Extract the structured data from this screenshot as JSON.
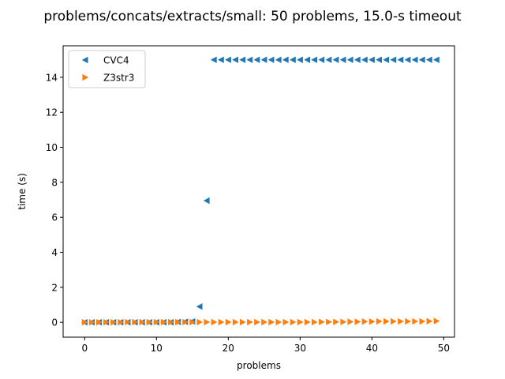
{
  "chart_data": {
    "type": "scatter",
    "title": "problems/concats/extracts/small: 50 problems, 15.0-s timeout",
    "xlabel": "problems",
    "ylabel": "time (s)",
    "xlim": [
      -3,
      51.5
    ],
    "ylim": [
      -0.85,
      15.8
    ],
    "xticks": [
      0,
      10,
      20,
      30,
      40,
      50
    ],
    "yticks": [
      0,
      2,
      4,
      6,
      8,
      10,
      12,
      14
    ],
    "grid": false,
    "legend_position": "top-left",
    "series": [
      {
        "name": "CVC4",
        "marker": "triangle-left",
        "color": "#1f77b4",
        "x": [
          0,
          1,
          2,
          3,
          4,
          5,
          6,
          7,
          8,
          9,
          10,
          11,
          12,
          13,
          14,
          15,
          16,
          17,
          18,
          19,
          20,
          21,
          22,
          23,
          24,
          25,
          26,
          27,
          28,
          29,
          30,
          31,
          32,
          33,
          34,
          35,
          36,
          37,
          38,
          39,
          40,
          41,
          42,
          43,
          44,
          45,
          46,
          47,
          48,
          49
        ],
        "y": [
          0,
          0,
          0,
          0,
          0,
          0,
          0,
          0,
          0,
          0,
          0,
          0,
          0,
          0.02,
          0.03,
          0.05,
          0.9,
          6.95,
          15,
          15,
          15,
          15,
          15,
          15,
          15,
          15,
          15,
          15,
          15,
          15,
          15,
          15,
          15,
          15,
          15,
          15,
          15,
          15,
          15,
          15,
          15,
          15,
          15,
          15,
          15,
          15,
          15,
          15,
          15,
          15
        ]
      },
      {
        "name": "Z3str3",
        "marker": "triangle-right",
        "color": "#ff7f0e",
        "x": [
          0,
          1,
          2,
          3,
          4,
          5,
          6,
          7,
          8,
          9,
          10,
          11,
          12,
          13,
          14,
          15,
          16,
          17,
          18,
          19,
          20,
          21,
          22,
          23,
          24,
          25,
          26,
          27,
          28,
          29,
          30,
          31,
          32,
          33,
          34,
          35,
          36,
          37,
          38,
          39,
          40,
          41,
          42,
          43,
          44,
          45,
          46,
          47,
          48,
          49
        ],
        "y": [
          0,
          0,
          0,
          0,
          0,
          0,
          0.01,
          0.01,
          0.01,
          0.01,
          0.01,
          0.01,
          0.01,
          0.01,
          0.01,
          0.01,
          0.01,
          0.01,
          0.01,
          0.01,
          0.01,
          0.01,
          0.01,
          0.01,
          0.01,
          0.01,
          0.01,
          0.01,
          0.01,
          0.01,
          0.01,
          0.01,
          0.01,
          0.02,
          0.02,
          0.02,
          0.02,
          0.03,
          0.03,
          0.04,
          0.04,
          0.05,
          0.05,
          0.05,
          0.05,
          0.05,
          0.05,
          0.05,
          0.06,
          0.07
        ]
      }
    ]
  }
}
